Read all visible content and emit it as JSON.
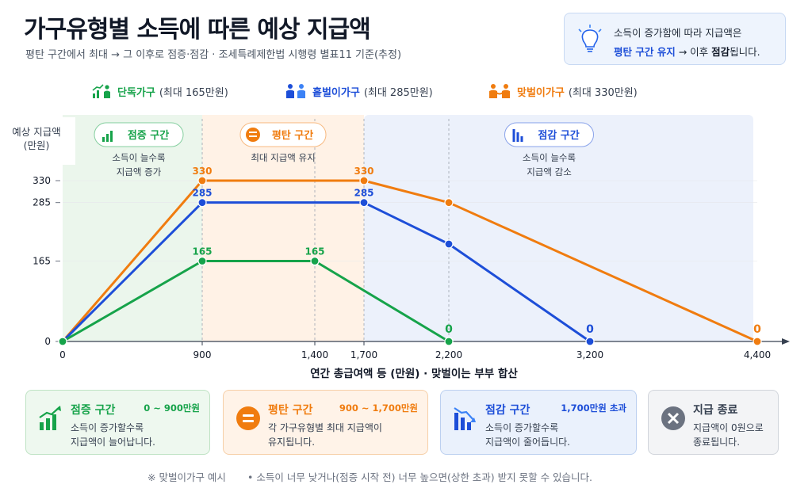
{
  "header": {
    "title": "가구유형별 소득에 따른 예상 지급액",
    "subtitle": "평탄 구간에서 최대 → 그 이후로 점증·점감 · 조세특례제한법 시행령 별표11 기준(추정)"
  },
  "info": {
    "line1": "소득이 증가함에 따라 지급액은",
    "hl1": "평탄 구간 유지",
    "arrow": " → 이후 ",
    "hl2": "점감",
    "tail": "됩니다."
  },
  "legend": [
    {
      "name": "단독가구",
      "max": "(최대 165만원)",
      "color": "#16a34a",
      "icon": "person-chart-icon"
    },
    {
      "name": "홑벌이가구",
      "max": "(최대 285만원)",
      "color": "#1d4ed8",
      "icon": "couple-icon"
    },
    {
      "name": "맞벌이가구",
      "max": "(최대 330만원)",
      "color": "#f07c0f",
      "icon": "holding-hands-icon"
    }
  ],
  "zones": [
    {
      "label": "점증 구간",
      "desc1": "소득이 늘수록",
      "desc2": "지급액 증가",
      "color": "#16a34a",
      "icon": "growth-chart-icon"
    },
    {
      "label": "평탄 구간",
      "desc1": "최대 지급액 유지",
      "desc2": "",
      "color": "#f07c0f",
      "icon": "equals-icon"
    },
    {
      "label": "점감 구간",
      "desc1": "소득이 늘수록",
      "desc2": "지급액 감소",
      "color": "#1d4ed8",
      "icon": "decline-chart-icon"
    }
  ],
  "chart_data": {
    "type": "line",
    "xlabel": "연간 총급여액 등 (만원) · 맞벌이는 부부 합산",
    "ylabel": "예상 지급액 (만원)",
    "x_ticks": [
      0,
      900,
      1400,
      1700,
      2200,
      3200,
      4400
    ],
    "y_ticks": [
      0,
      165,
      285,
      330
    ],
    "xlim": [
      0,
      4400
    ],
    "ylim": [
      0,
      330
    ],
    "series": [
      {
        "name": "단독가구",
        "color": "#16a34a",
        "points": [
          [
            0,
            0
          ],
          [
            900,
            165
          ],
          [
            1400,
            165
          ],
          [
            2200,
            0
          ]
        ],
        "labels": [
          "",
          "165",
          "165",
          "0"
        ]
      },
      {
        "name": "홑벌이가구",
        "color": "#1d4ed8",
        "points": [
          [
            0,
            0
          ],
          [
            900,
            285
          ],
          [
            1700,
            285
          ],
          [
            2200,
            200
          ],
          [
            3200,
            0
          ]
        ],
        "labels": [
          "",
          "285",
          "285",
          "",
          "0"
        ]
      },
      {
        "name": "맞벌이가구",
        "color": "#f07c0f",
        "points": [
          [
            0,
            0
          ],
          [
            900,
            330
          ],
          [
            1700,
            330
          ],
          [
            2200,
            285
          ],
          [
            4400,
            0
          ]
        ],
        "labels": [
          "",
          "330",
          "330",
          "",
          "0"
        ]
      }
    ]
  },
  "cards": [
    {
      "title": "점증 구간",
      "range": "0 ~ 900만원",
      "desc": "소득이 증가할수록\n지급액이 늘어납니다.",
      "color": "#16a34a",
      "bg": "#eef8ef",
      "border": "#bfe3c4"
    },
    {
      "title": "평탄 구간",
      "range": "900 ~ 1,700만원",
      "desc": "각 가구유형별 최대 지급액이\n유지됩니다.",
      "color": "#f07c0f",
      "bg": "#fff3e8",
      "border": "#f6cfa7"
    },
    {
      "title": "점감 구간",
      "range": "1,700만원 초과",
      "desc": "소득이 증가할수록\n지급액이 줄어듭니다.",
      "color": "#1d4ed8",
      "bg": "#eaf1fc",
      "border": "#bcd0f0"
    },
    {
      "title": "지급 종료",
      "range": "",
      "desc": "지급액이 0원으로\n종료됩니다.",
      "color": "#374151",
      "bg": "#f3f4f6",
      "border": "#d1d5db"
    }
  ],
  "footer": {
    "note1": "※ 맞벌이가구 예시",
    "note2": "• 소득이 너무 낮거나(점증 시작 전) 너무 높으면(상한 초과) 받지 못할 수 있습니다."
  }
}
